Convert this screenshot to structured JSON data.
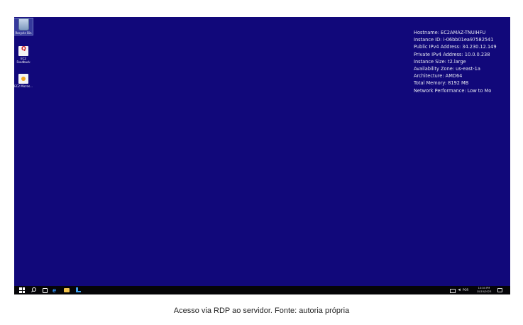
{
  "desktop": {
    "icons": [
      {
        "label": "Recycle Bin",
        "icon": "recycle-bin-icon"
      },
      {
        "label": "EC2 Feedback",
        "icon": "feedback-icon"
      },
      {
        "label": "EC2 Micros...",
        "icon": "ec2-microsoft-icon"
      }
    ],
    "background_color": "#11087a"
  },
  "bginfo": {
    "hostname": "Hostname: EC2AMAZ-TNUIHFU",
    "instance_id": "Instance ID: i-06bb01ea97582541",
    "public_ip": "Public IPv4 Address: 34.230.12.149",
    "private_ip": "Private IPv4 Address: 10.0.0.238",
    "instance_size": "Instance Size: t2.large",
    "availability_zone": "Availability Zone: us-east-1a",
    "architecture": "Architecture: AMD64",
    "total_memory": "Total Memory: 8192 MB",
    "network_performance": "Network Performance: Low to Mo"
  },
  "taskbar": {
    "language": "POR",
    "time": "10:04 PM",
    "date": "10/10/2023"
  },
  "caption": "Acesso via RDP ao servidor. Fonte: autoria própria"
}
